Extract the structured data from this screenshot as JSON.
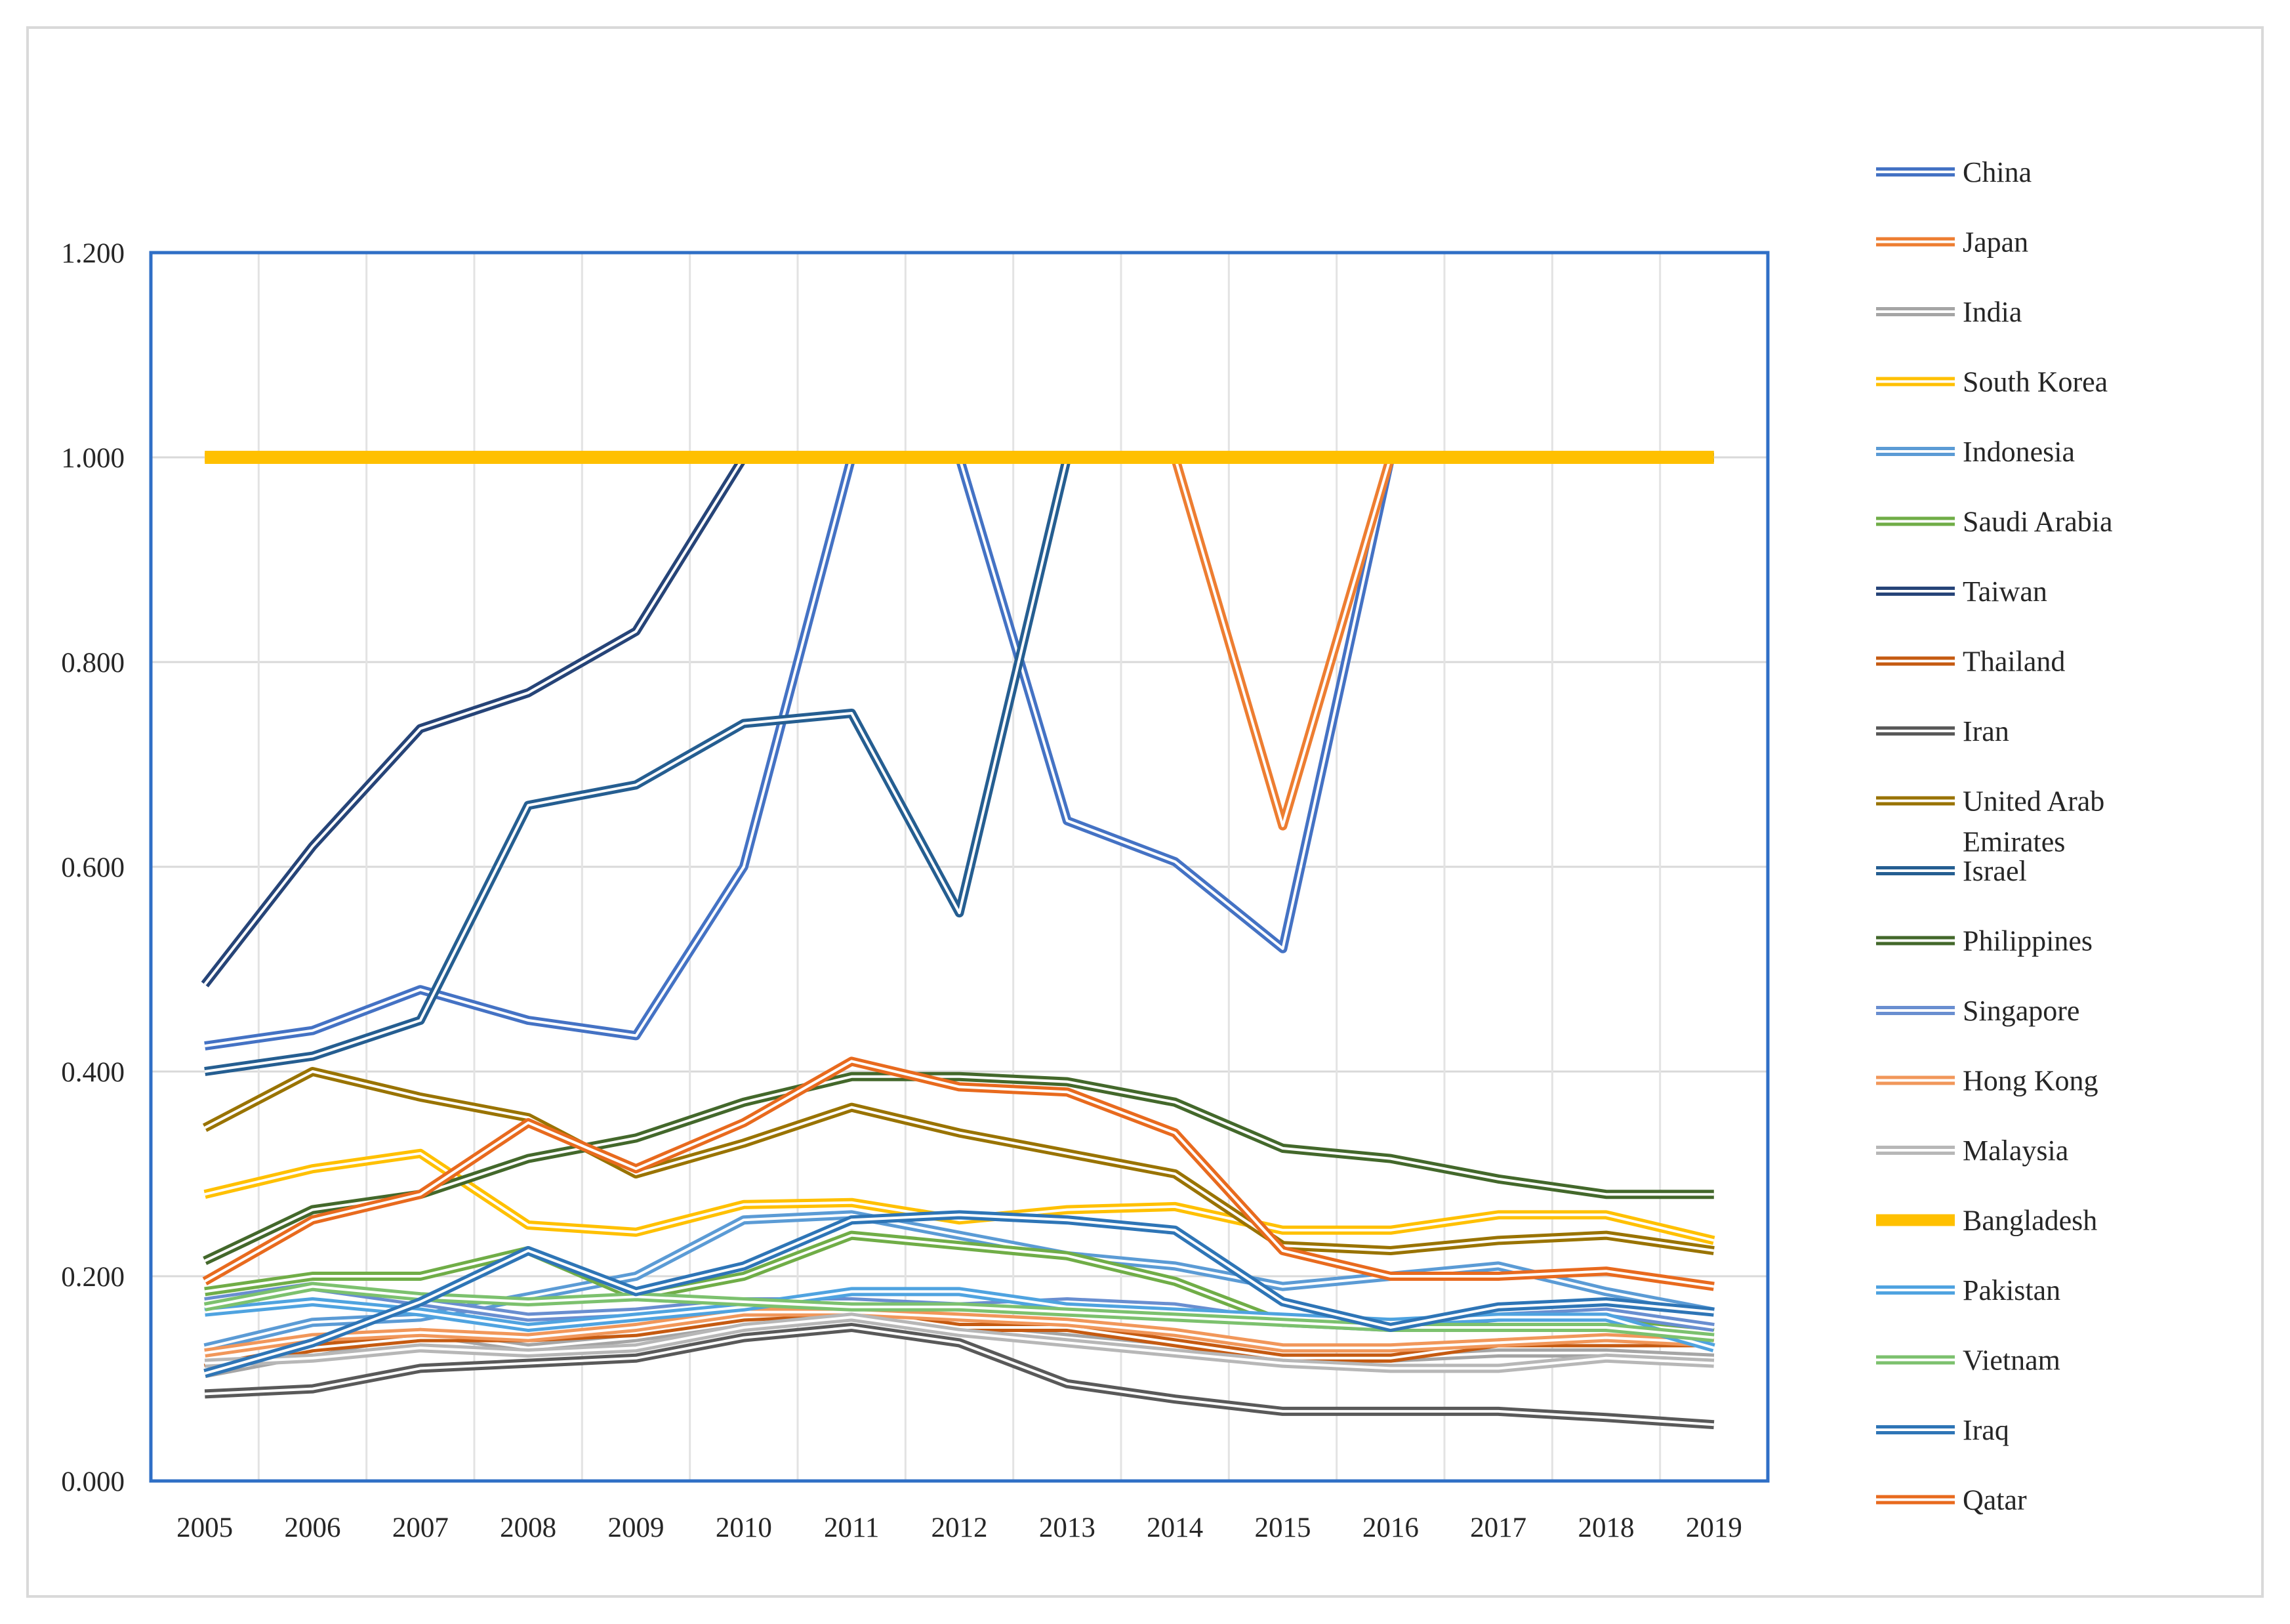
{
  "chart_data": {
    "type": "line",
    "title": "",
    "xlabel": "",
    "ylabel": "",
    "ylim": [
      0,
      1.2
    ],
    "yticks": [
      "0.000",
      "0.200",
      "0.400",
      "0.600",
      "0.800",
      "1.000",
      "1.200"
    ],
    "yticks_values": [
      0,
      0.2,
      0.4,
      0.6,
      0.8,
      1.0,
      1.2
    ],
    "x": [
      "2005",
      "2006",
      "2007",
      "2008",
      "2009",
      "2010",
      "2011",
      "2012",
      "2013",
      "2014",
      "2015",
      "2016",
      "2017",
      "2018",
      "2019"
    ],
    "grid": true,
    "legend": "right",
    "series": [
      {
        "name": "China",
        "color": "#4472C4",
        "values": [
          0.425,
          0.44,
          0.48,
          0.45,
          0.435,
          0.6,
          1.0,
          1.0,
          0.645,
          0.605,
          0.52,
          1.0,
          1.0,
          1.0,
          1.0
        ]
      },
      {
        "name": "Japan",
        "color": "#ED7D31",
        "values": [
          1.0,
          1.0,
          1.0,
          1.0,
          1.0,
          1.0,
          1.0,
          1.0,
          1.0,
          1.0,
          0.64,
          1.0,
          1.0,
          1.0,
          1.0
        ]
      },
      {
        "name": "India",
        "color": "#A5A5A5",
        "values": [
          0.105,
          0.125,
          0.145,
          0.13,
          0.14,
          0.155,
          0.165,
          0.15,
          0.14,
          0.13,
          0.12,
          0.12,
          0.125,
          0.125,
          0.12
        ]
      },
      {
        "name": "South Korea",
        "color": "#FFC000",
        "values": [
          0.28,
          0.305,
          0.32,
          0.25,
          0.243,
          0.27,
          0.272,
          0.255,
          0.265,
          0.268,
          0.245,
          0.245,
          0.26,
          0.26,
          0.235
        ]
      },
      {
        "name": "Indonesia",
        "color": "#5B9BD5",
        "values": [
          0.13,
          0.155,
          0.16,
          0.18,
          0.2,
          0.255,
          0.26,
          0.24,
          0.22,
          0.21,
          0.19,
          0.2,
          0.21,
          0.185,
          0.165
        ]
      },
      {
        "name": "Saudi Arabia",
        "color": "#70AD47",
        "values": [
          0.185,
          0.2,
          0.2,
          0.225,
          0.18,
          0.2,
          0.24,
          0.23,
          0.22,
          0.195,
          0.155,
          0.155,
          0.155,
          0.155,
          0.145
        ]
      },
      {
        "name": "Taiwan",
        "color": "#264478",
        "values": [
          0.485,
          0.62,
          0.735,
          0.77,
          0.83,
          1.0,
          1.0,
          1.0,
          1.0,
          1.0,
          1.0,
          1.0,
          1.0,
          1.0,
          1.0
        ]
      },
      {
        "name": "Thailand",
        "color": "#C55A11",
        "values": [
          0.11,
          0.13,
          0.14,
          0.14,
          0.145,
          0.16,
          0.165,
          0.15,
          0.15,
          0.135,
          0.12,
          0.12,
          0.135,
          0.135,
          0.135
        ]
      },
      {
        "name": "Iran",
        "color": "#595959",
        "values": [
          0.085,
          0.09,
          0.11,
          0.115,
          0.12,
          0.14,
          0.15,
          0.135,
          0.095,
          0.08,
          0.068,
          0.068,
          0.068,
          0.062,
          0.055
        ]
      },
      {
        "name": "United Arab Emirates",
        "color": "#997300",
        "values": [
          0.345,
          0.4,
          0.375,
          0.355,
          0.3,
          0.33,
          0.365,
          0.34,
          0.32,
          0.3,
          0.23,
          0.225,
          0.235,
          0.24,
          0.225
        ]
      },
      {
        "name": "Israel",
        "color": "#255E91",
        "values": [
          0.4,
          0.415,
          0.45,
          0.66,
          0.68,
          0.74,
          0.75,
          0.555,
          1.0,
          1.0,
          1.0,
          1.0,
          1.0,
          1.0,
          1.0
        ]
      },
      {
        "name": "Philippines",
        "color": "#43682B",
        "values": [
          0.215,
          0.265,
          0.28,
          0.315,
          0.335,
          0.37,
          0.395,
          0.395,
          0.39,
          0.37,
          0.325,
          0.315,
          0.295,
          0.28,
          0.28
        ]
      },
      {
        "name": "Singapore",
        "color": "#698ED0",
        "values": [
          0.175,
          0.19,
          0.175,
          0.16,
          0.165,
          0.175,
          0.175,
          0.17,
          0.175,
          0.17,
          0.155,
          0.15,
          0.16,
          0.165,
          0.15
        ]
      },
      {
        "name": "Hong Kong",
        "color": "#F1975A",
        "values": [
          0.125,
          0.14,
          0.145,
          0.14,
          0.15,
          0.165,
          0.165,
          0.16,
          0.155,
          0.145,
          0.13,
          0.13,
          0.135,
          0.14,
          0.135
        ]
      },
      {
        "name": "Malaysia",
        "color": "#B7B7B7",
        "values": [
          0.115,
          0.12,
          0.13,
          0.125,
          0.13,
          0.15,
          0.16,
          0.145,
          0.135,
          0.125,
          0.115,
          0.11,
          0.11,
          0.12,
          0.115
        ]
      },
      {
        "name": "Bangladesh",
        "color": "#FFC000",
        "values": [
          1.0,
          1.0,
          1.0,
          1.0,
          1.0,
          1.0,
          1.0,
          1.0,
          1.0,
          1.0,
          1.0,
          1.0,
          1.0,
          1.0,
          1.0
        ]
      },
      {
        "name": "Pakistan",
        "color": "#4FA3E0",
        "values": [
          0.165,
          0.175,
          0.165,
          0.15,
          0.16,
          0.17,
          0.185,
          0.185,
          0.17,
          0.165,
          0.16,
          0.155,
          0.16,
          0.16,
          0.13
        ]
      },
      {
        "name": "Vietnam",
        "color": "#7CC16E",
        "values": [
          0.17,
          0.19,
          0.18,
          0.175,
          0.18,
          0.175,
          0.17,
          0.17,
          0.165,
          0.16,
          0.155,
          0.15,
          0.15,
          0.15,
          0.14
        ]
      },
      {
        "name": "Iraq",
        "color": "#2E75B6",
        "values": [
          0.105,
          0.135,
          0.175,
          0.225,
          0.185,
          0.21,
          0.255,
          0.26,
          0.255,
          0.245,
          0.175,
          0.15,
          0.17,
          0.175,
          0.165
        ]
      },
      {
        "name": "Qatar",
        "color": "#E86A1E",
        "values": [
          0.195,
          0.255,
          0.28,
          0.35,
          0.305,
          0.35,
          0.41,
          0.385,
          0.38,
          0.34,
          0.225,
          0.2,
          0.2,
          0.205,
          0.19
        ]
      }
    ]
  }
}
